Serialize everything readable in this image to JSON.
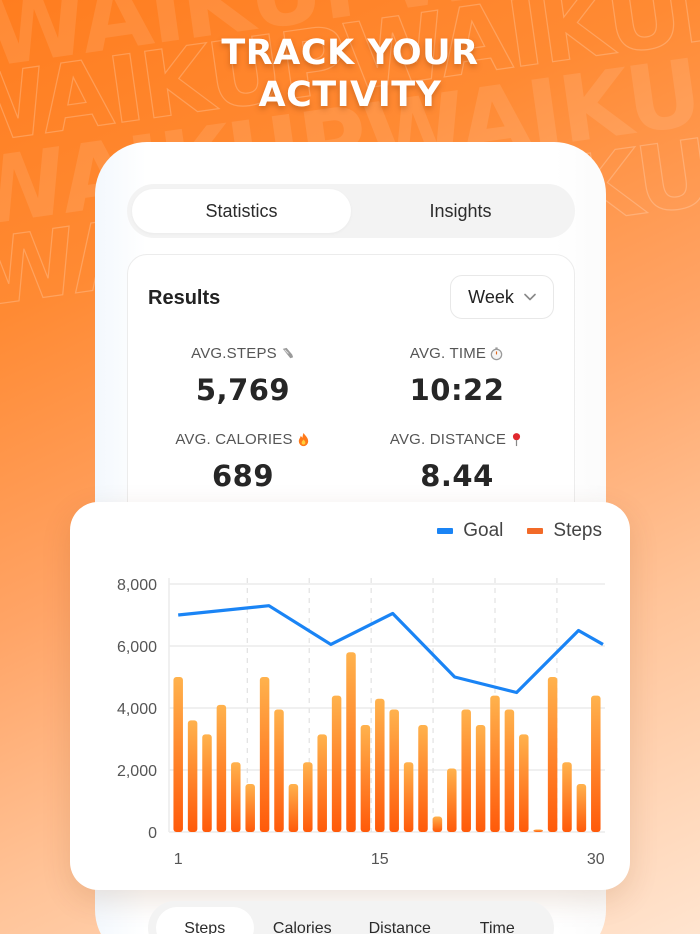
{
  "headline": {
    "line1": "TRACK YOUR",
    "line2": "ACTIVITY"
  },
  "watermark": {
    "text": "WAIKUP"
  },
  "tabs": [
    {
      "label": "Statistics",
      "active": true
    },
    {
      "label": "Insights",
      "active": false
    }
  ],
  "results": {
    "title": "Results",
    "period": {
      "selected": "Week",
      "icon": "chevron-down-icon"
    },
    "stats": [
      {
        "label": "AVG.STEPS",
        "icon": "sneaker-icon",
        "value": "5,769"
      },
      {
        "label": "AVG. TIME",
        "icon": "stopwatch-icon",
        "value": "10:22"
      },
      {
        "label": "AVG. CALORIES",
        "icon": "fire-icon",
        "value": "689"
      },
      {
        "label": "AVG. DISTANCE",
        "icon": "pin-icon",
        "value": "8.44"
      }
    ]
  },
  "legend": [
    {
      "label": "Goal",
      "color": "#1a84f5"
    },
    {
      "label": "Steps",
      "color": "#f26a28"
    }
  ],
  "bottom_tabs": [
    {
      "label": "Steps",
      "active": true
    },
    {
      "label": "Calories",
      "active": false
    },
    {
      "label": "Distance",
      "active": false
    },
    {
      "label": "Time",
      "active": false
    }
  ],
  "colors": {
    "accent": "#ff7d1f",
    "goal_line": "#1a84f5",
    "bar_top": "#ffb24d",
    "bar_bottom": "#ff5a0a"
  },
  "chart_data": {
    "type": "bar",
    "title": "",
    "xlabel": "",
    "ylabel": "",
    "x": [
      1,
      2,
      3,
      4,
      5,
      6,
      7,
      8,
      9,
      10,
      11,
      12,
      13,
      14,
      15,
      16,
      17,
      18,
      19,
      20,
      21,
      22,
      23,
      24,
      25,
      26,
      27,
      28,
      29,
      30
    ],
    "x_tick_labels": [
      "1",
      "15",
      "30"
    ],
    "y_tick_labels": [
      "0",
      "2,000",
      "4,000",
      "6,000",
      "8,000"
    ],
    "ylim": [
      0,
      8000
    ],
    "grid": true,
    "legend_position": "top-right",
    "series": [
      {
        "name": "Steps",
        "type": "bar",
        "values": [
          5000,
          3600,
          3150,
          4100,
          2250,
          1550,
          5000,
          3950,
          1550,
          2250,
          3150,
          4400,
          5800,
          3450,
          4300,
          3950,
          2250,
          3450,
          500,
          2050,
          3950,
          3450,
          4400,
          3950,
          3150,
          50,
          5000,
          2250,
          1550,
          4400
        ]
      },
      {
        "name": "Goal",
        "type": "line",
        "x": [
          1,
          7.3,
          11.6,
          15.9,
          20.2,
          24.5,
          28.8,
          30.5
        ],
        "values": [
          7000,
          7300,
          6050,
          7050,
          5000,
          4500,
          6500,
          6050
        ]
      }
    ]
  }
}
